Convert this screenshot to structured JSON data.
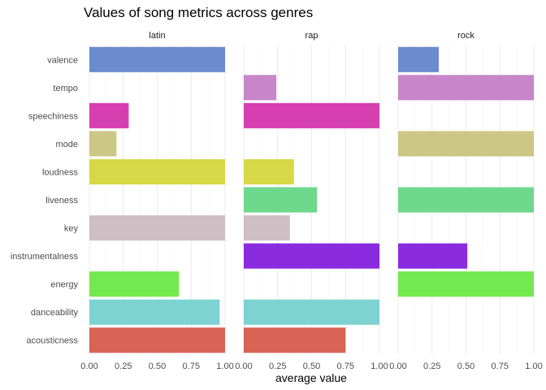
{
  "chart_data": {
    "type": "bar",
    "orientation": "horizontal",
    "title": "Values of song metrics across genres",
    "xlabel": "average value",
    "ylabel": "",
    "xlim": [
      0,
      1
    ],
    "x_ticks": [
      "0.00",
      "0.25",
      "0.50",
      "0.75",
      "1.00"
    ],
    "grid": true,
    "legend": "none",
    "categories": [
      "valence",
      "tempo",
      "speechiness",
      "mode",
      "loudness",
      "liveness",
      "key",
      "instrumentalness",
      "energy",
      "danceability",
      "acousticness"
    ],
    "colors": {
      "valence": "#6c8bce",
      "tempo": "#c886c9",
      "speechiness": "#d63fb0",
      "mode": "#cdc785",
      "loudness": "#d6d847",
      "liveness": "#6ed88d",
      "key": "#cdbfc4",
      "instrumentalness": "#8a2be0",
      "energy": "#74e94f",
      "danceability": "#7cd3d2",
      "acousticness": "#d96354"
    },
    "panels": [
      {
        "name": "latin",
        "values": {
          "valence": 1.0,
          "tempo": 0,
          "speechiness": 0.29,
          "mode": 0.2,
          "loudness": 1.0,
          "liveness": 0,
          "key": 1.0,
          "instrumentalness": 0,
          "energy": 0.66,
          "danceability": 0.96,
          "acousticness": 1.0
        }
      },
      {
        "name": "rap",
        "values": {
          "valence": 0,
          "tempo": 0.24,
          "speechiness": 1.0,
          "mode": 0,
          "loudness": 0.37,
          "liveness": 0.54,
          "key": 0.34,
          "instrumentalness": 1.0,
          "energy": 0,
          "danceability": 1.0,
          "acousticness": 0.75
        }
      },
      {
        "name": "rock",
        "values": {
          "valence": 0.3,
          "tempo": 1.0,
          "speechiness": 0,
          "mode": 1.0,
          "loudness": 0,
          "liveness": 1.0,
          "key": 0,
          "instrumentalness": 0.51,
          "energy": 1.0,
          "danceability": 0,
          "acousticness": 0
        }
      }
    ]
  }
}
